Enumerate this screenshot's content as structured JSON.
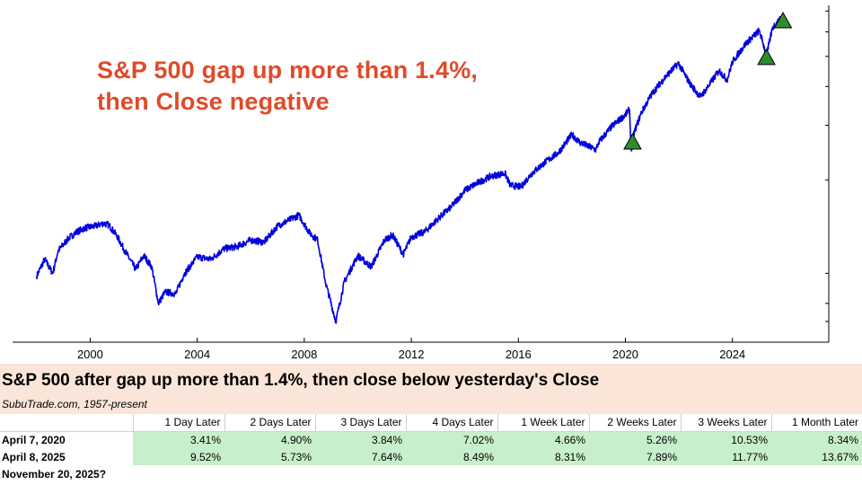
{
  "headline": {
    "line1": "S&P 500 gap up more than 1.4%,",
    "line2": "then Close negative"
  },
  "colors": {
    "line": "#0000dd",
    "headline": "#e04a2a",
    "marker_fill": "#2e8b2e",
    "table_header_bg": "#fbe5d8",
    "table_value_bg": "#c8efcb"
  },
  "chart_data": {
    "type": "line",
    "title": "S&P 500 gap up more than 1.4%, then Close negative",
    "xlabel": "",
    "ylabel": "",
    "scale": "log",
    "x_ticks": [
      "2000",
      "2004",
      "2008",
      "2012",
      "2016",
      "2020",
      "2024"
    ],
    "xlim": [
      1997.1,
      2027.6
    ],
    "ylim": [
      600,
      7300
    ],
    "series": [
      {
        "name": "S&P 500",
        "x": [
          1998.0,
          1998.3,
          1998.6,
          1998.8,
          1999.2,
          1999.5,
          1999.8,
          2000.2,
          2000.5,
          2000.7,
          2001.0,
          2001.3,
          2001.7,
          2002.0,
          2002.3,
          2002.55,
          2002.8,
          2003.2,
          2003.5,
          2004.0,
          2004.5,
          2005.0,
          2005.5,
          2006.0,
          2006.5,
          2007.0,
          2007.4,
          2007.8,
          2008.2,
          2008.5,
          2008.8,
          2009.18,
          2009.5,
          2010.0,
          2010.5,
          2011.0,
          2011.3,
          2011.7,
          2012.0,
          2012.5,
          2013.0,
          2013.5,
          2014.0,
          2014.5,
          2015.0,
          2015.5,
          2015.7,
          2016.1,
          2016.5,
          2017.0,
          2017.5,
          2018.0,
          2018.3,
          2018.9,
          2019.0,
          2019.5,
          2020.0,
          2020.15,
          2020.22,
          2020.3,
          2020.6,
          2021.0,
          2021.5,
          2021.98,
          2022.4,
          2022.8,
          2023.0,
          2023.5,
          2023.8,
          2024.0,
          2024.5,
          2025.0,
          2025.15,
          2025.27,
          2025.5,
          2025.88
        ],
        "values": [
          980,
          1110,
          1000,
          1180,
          1300,
          1360,
          1400,
          1420,
          1450,
          1430,
          1320,
          1180,
          1030,
          1140,
          1050,
          800,
          870,
          860,
          990,
          1130,
          1110,
          1200,
          1220,
          1280,
          1260,
          1420,
          1480,
          1540,
          1350,
          1280,
          930,
          700,
          940,
          1140,
          1050,
          1280,
          1330,
          1150,
          1310,
          1360,
          1500,
          1640,
          1850,
          1960,
          2060,
          2100,
          1920,
          1900,
          2100,
          2280,
          2450,
          2800,
          2640,
          2500,
          2640,
          2980,
          3240,
          3380,
          2480,
          2800,
          3300,
          3800,
          4300,
          4750,
          4100,
          3700,
          3900,
          4500,
          4200,
          4800,
          5500,
          6050,
          5500,
          5000,
          6200,
          6700
        ]
      }
    ],
    "markers": [
      {
        "label": "April 7, 2020",
        "x": 2020.27,
        "y": 2660
      },
      {
        "label": "April 8, 2025",
        "x": 2025.27,
        "y": 4980
      },
      {
        "label": "November 20, 2025?",
        "x": 2025.89,
        "y": 6540
      }
    ]
  },
  "table": {
    "title": "S&P 500 after gap up more than 1.4%, then close below yesterday's Close",
    "source": "SubuTrade.com, 1957-present",
    "columns": [
      "1 Day Later",
      "2 Days Later",
      "3 Days Later",
      "4 Days Later",
      "1 Week Later",
      "2 Weeks Later",
      "3 Weeks Later",
      "1 Month Later"
    ],
    "rows": [
      {
        "label": "April 7, 2020",
        "values": [
          "3.41%",
          "4.90%",
          "3.84%",
          "7.02%",
          "4.66%",
          "5.26%",
          "10.53%",
          "8.34%"
        ]
      },
      {
        "label": "April 8, 2025",
        "values": [
          "9.52%",
          "5.73%",
          "7.64%",
          "8.49%",
          "8.31%",
          "7.89%",
          "11.77%",
          "13.67%"
        ]
      },
      {
        "label": "November 20, 2025?",
        "values": []
      }
    ]
  }
}
